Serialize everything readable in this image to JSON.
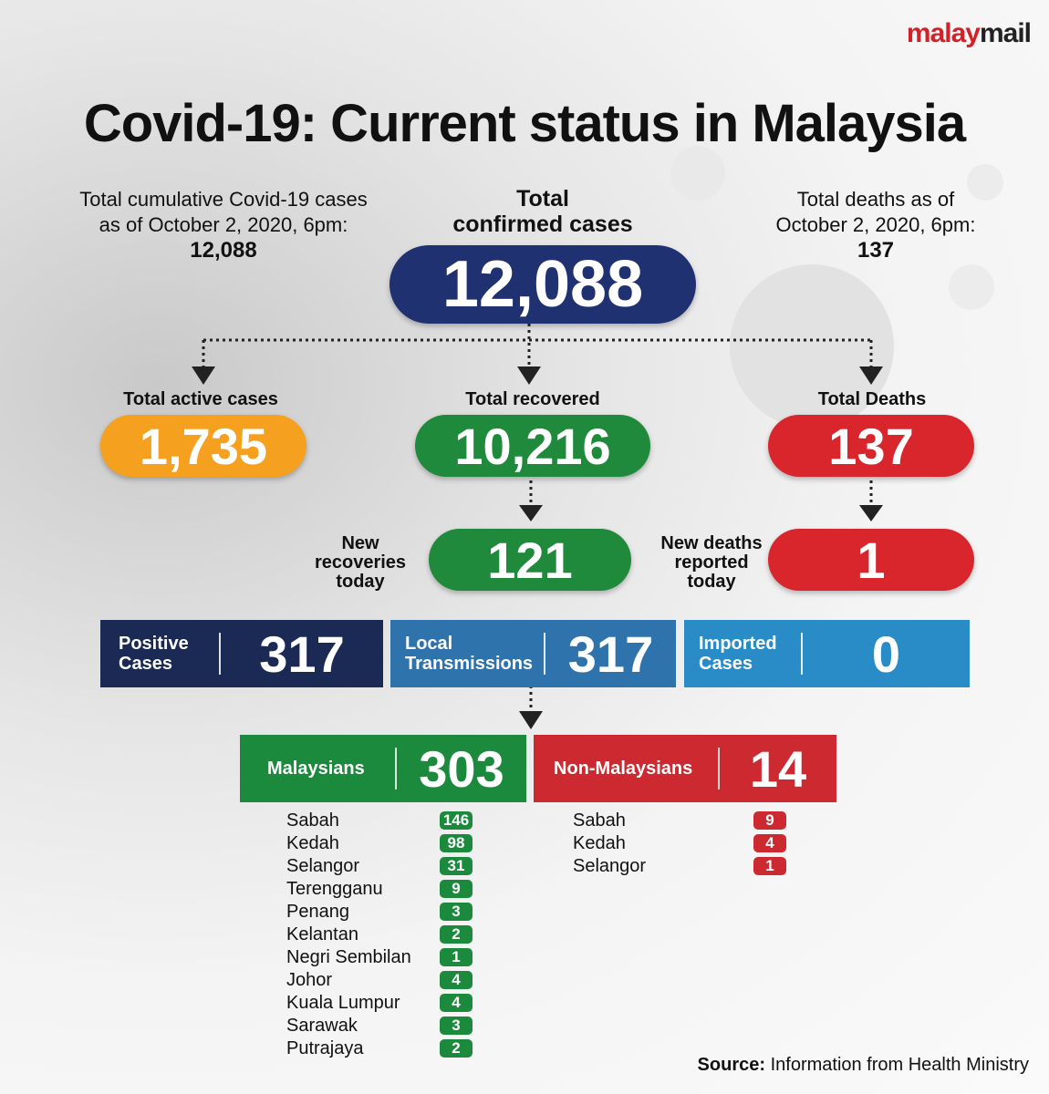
{
  "logo": {
    "part1": "malay",
    "part2": "mail"
  },
  "title": "Covid-19: Current status in Malaysia",
  "top_left": {
    "line1": "Total cumulative Covid-19 cases",
    "line2": "as of October 2, 2020, 6pm:",
    "value": "12,088"
  },
  "top_center": {
    "line1": "Total",
    "line2": "confirmed cases",
    "value": "12,088"
  },
  "top_right": {
    "line1": "Total deaths as of",
    "line2": "October 2, 2020, 6pm:",
    "value": "137"
  },
  "active": {
    "label": "Total active cases",
    "value": "1,735"
  },
  "recovered": {
    "label": "Total recovered",
    "value": "10,216"
  },
  "deaths": {
    "label": "Total Deaths",
    "value": "137"
  },
  "new_recoveries": {
    "line1": "New",
    "line2": "recoveries",
    "line3": "today",
    "value": "121"
  },
  "new_deaths": {
    "line1": "New deaths",
    "line2": "reported",
    "line3": "today",
    "value": "1"
  },
  "positive": {
    "line1": "Positive",
    "line2": "Cases",
    "value": "317"
  },
  "local": {
    "line1": "Local",
    "line2": "Transmissions",
    "value": "317"
  },
  "imported": {
    "line1": "Imported",
    "line2": "Cases",
    "value": "0"
  },
  "malaysians": {
    "label": "Malaysians",
    "value": "303"
  },
  "non_malaysians": {
    "label": "Non-Malaysians",
    "value": "14"
  },
  "malaysian_states": [
    {
      "state": "Sabah",
      "count": "146"
    },
    {
      "state": "Kedah",
      "count": "98"
    },
    {
      "state": "Selangor",
      "count": "31"
    },
    {
      "state": "Terengganu",
      "count": "9"
    },
    {
      "state": "Penang",
      "count": "3"
    },
    {
      "state": "Kelantan",
      "count": "2"
    },
    {
      "state": "Negri Sembilan",
      "count": "1"
    },
    {
      "state": "Johor",
      "count": "4"
    },
    {
      "state": "Kuala Lumpur",
      "count": "4"
    },
    {
      "state": "Sarawak",
      "count": "3"
    },
    {
      "state": "Putrajaya",
      "count": "2"
    }
  ],
  "non_malaysian_states": [
    {
      "state": "Sabah",
      "count": "9"
    },
    {
      "state": "Kedah",
      "count": "4"
    },
    {
      "state": "Selangor",
      "count": "1"
    }
  ],
  "source": {
    "label": "Source:",
    "text": "Information from Health Ministry"
  },
  "colors": {
    "navy": "#1f3170",
    "orange": "#f5a01e",
    "green": "#1f8a3c",
    "red": "#d9252c",
    "bar_navy": "#1b2a55",
    "bar_blue": "#2f73ad",
    "bar_lightblue": "#2a8cc6",
    "bar_green": "#1b8a3d",
    "bar_red": "#cc2a30"
  }
}
